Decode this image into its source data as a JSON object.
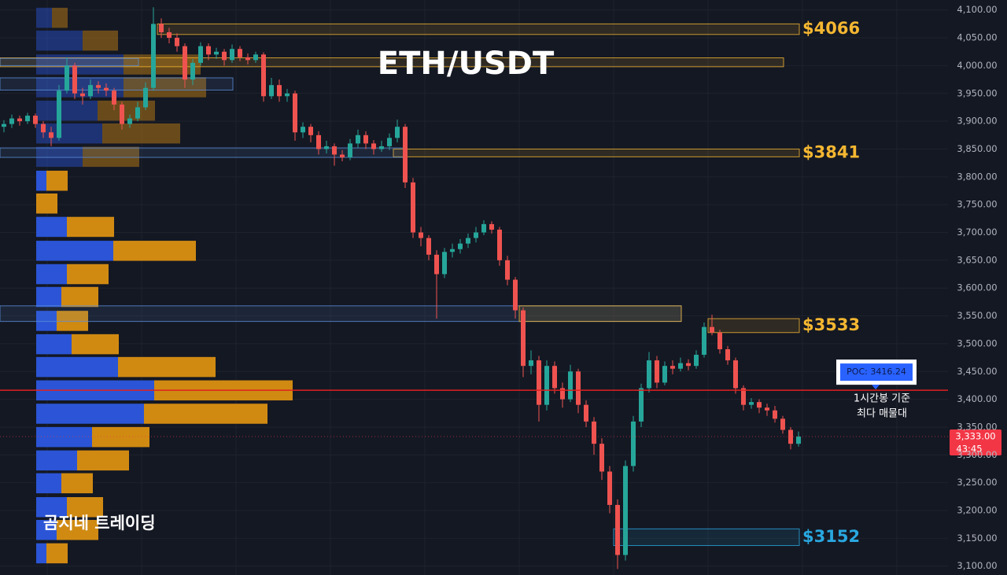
{
  "chart_data": {
    "type": "candlestick",
    "title": "ETH/USDT",
    "watermark": "곰지네 트레이딩",
    "ylim": [
      3084,
      4118
    ],
    "yticks": [
      {
        "value": 3100,
        "label": "3,100.00"
      },
      {
        "value": 3150,
        "label": "3,150.00"
      },
      {
        "value": 3200,
        "label": "3,200.00"
      },
      {
        "value": 3250,
        "label": "3,250.00"
      },
      {
        "value": 3300,
        "label": "3,300.00"
      },
      {
        "value": 3350,
        "label": "3,350.00"
      },
      {
        "value": 3400,
        "label": "3,400.00"
      },
      {
        "value": 3450,
        "label": "3,450.00"
      },
      {
        "value": 3500,
        "label": "3,500.00"
      },
      {
        "value": 3550,
        "label": "3,550.00"
      },
      {
        "value": 3600,
        "label": "3,600.00"
      },
      {
        "value": 3650,
        "label": "3,650.00"
      },
      {
        "value": 3700,
        "label": "3,700.00"
      },
      {
        "value": 3750,
        "label": "3,750.00"
      },
      {
        "value": 3800,
        "label": "3,800.00"
      },
      {
        "value": 3850,
        "label": "3,850.00"
      },
      {
        "value": 3900,
        "label": "3,900.00"
      },
      {
        "value": 3950,
        "label": "3,950.00"
      },
      {
        "value": 4000,
        "label": "4,000.00"
      },
      {
        "value": 4050,
        "label": "4,050.00"
      },
      {
        "value": 4100,
        "label": "4,100.00"
      }
    ],
    "grid": true,
    "up_color": "#26a69a",
    "down_color": "#ef5350",
    "ohlc": [
      [
        3890,
        3902,
        3880,
        3895
      ],
      [
        3895,
        3912,
        3888,
        3905
      ],
      [
        3905,
        3910,
        3892,
        3900
      ],
      [
        3900,
        3915,
        3895,
        3910
      ],
      [
        3910,
        3914,
        3888,
        3895
      ],
      [
        3895,
        3900,
        3870,
        3880
      ],
      [
        3880,
        3890,
        3855,
        3870
      ],
      [
        3870,
        3965,
        3865,
        3955
      ],
      [
        3955,
        4015,
        3950,
        4000
      ],
      [
        4000,
        4005,
        3940,
        3950
      ],
      [
        3950,
        3960,
        3930,
        3945
      ],
      [
        3945,
        3975,
        3940,
        3965
      ],
      [
        3965,
        3972,
        3950,
        3960
      ],
      [
        3960,
        3968,
        3945,
        3955
      ],
      [
        3955,
        3960,
        3920,
        3930
      ],
      [
        3930,
        3935,
        3885,
        3895
      ],
      [
        3895,
        3912,
        3888,
        3905
      ],
      [
        3905,
        3935,
        3900,
        3925
      ],
      [
        3925,
        3970,
        3920,
        3960
      ],
      [
        3960,
        4105,
        3955,
        4075
      ],
      [
        4075,
        4085,
        4050,
        4060
      ],
      [
        4060,
        4068,
        4040,
        4050
      ],
      [
        4050,
        4058,
        4025,
        4035
      ],
      [
        4035,
        4040,
        3960,
        3975
      ],
      [
        3975,
        4012,
        3965,
        4005
      ],
      [
        4005,
        4042,
        4000,
        4035
      ],
      [
        4035,
        4040,
        4010,
        4020
      ],
      [
        4020,
        4032,
        4012,
        4025
      ],
      [
        4025,
        4030,
        4000,
        4010
      ],
      [
        4010,
        4038,
        4005,
        4030
      ],
      [
        4030,
        4035,
        4008,
        4015
      ],
      [
        4015,
        4022,
        4002,
        4010
      ],
      [
        4010,
        4025,
        4005,
        4020
      ],
      [
        4020,
        4024,
        3935,
        3945
      ],
      [
        3945,
        3978,
        3940,
        3965
      ],
      [
        3965,
        3975,
        3935,
        3945
      ],
      [
        3945,
        3958,
        3935,
        3950
      ],
      [
        3950,
        3955,
        3865,
        3880
      ],
      [
        3880,
        3898,
        3870,
        3890
      ],
      [
        3890,
        3895,
        3862,
        3875
      ],
      [
        3875,
        3882,
        3840,
        3850
      ],
      [
        3850,
        3865,
        3842,
        3855
      ],
      [
        3855,
        3860,
        3820,
        3840
      ],
      [
        3840,
        3848,
        3828,
        3835
      ],
      [
        3835,
        3868,
        3830,
        3860
      ],
      [
        3860,
        3885,
        3852,
        3875
      ],
      [
        3875,
        3882,
        3850,
        3860
      ],
      [
        3860,
        3866,
        3840,
        3850
      ],
      [
        3850,
        3865,
        3845,
        3855
      ],
      [
        3855,
        3878,
        3848,
        3870
      ],
      [
        3870,
        3903,
        3862,
        3890
      ],
      [
        3890,
        3895,
        3780,
        3790
      ],
      [
        3790,
        3798,
        3690,
        3700
      ],
      [
        3700,
        3710,
        3675,
        3690
      ],
      [
        3690,
        3695,
        3650,
        3660
      ],
      [
        3660,
        3668,
        3545,
        3625
      ],
      [
        3625,
        3672,
        3618,
        3665
      ],
      [
        3665,
        3680,
        3655,
        3670
      ],
      [
        3670,
        3688,
        3662,
        3680
      ],
      [
        3680,
        3698,
        3672,
        3690
      ],
      [
        3690,
        3710,
        3682,
        3700
      ],
      [
        3700,
        3722,
        3695,
        3715
      ],
      [
        3715,
        3720,
        3698,
        3705
      ],
      [
        3705,
        3710,
        3640,
        3650
      ],
      [
        3650,
        3658,
        3605,
        3615
      ],
      [
        3615,
        3620,
        3545,
        3560
      ],
      [
        3560,
        3565,
        3440,
        3460
      ],
      [
        3460,
        3488,
        3445,
        3470
      ],
      [
        3470,
        3478,
        3360,
        3390
      ],
      [
        3390,
        3470,
        3380,
        3460
      ],
      [
        3460,
        3468,
        3410,
        3420
      ],
      [
        3420,
        3430,
        3385,
        3400
      ],
      [
        3400,
        3462,
        3395,
        3450
      ],
      [
        3450,
        3455,
        3375,
        3390
      ],
      [
        3390,
        3398,
        3350,
        3360
      ],
      [
        3360,
        3368,
        3300,
        3320
      ],
      [
        3320,
        3330,
        3255,
        3270
      ],
      [
        3270,
        3280,
        3195,
        3210
      ],
      [
        3210,
        3220,
        3095,
        3120
      ],
      [
        3120,
        3290,
        3110,
        3280
      ],
      [
        3280,
        3370,
        3270,
        3360
      ],
      [
        3360,
        3428,
        3350,
        3420
      ],
      [
        3420,
        3485,
        3412,
        3470
      ],
      [
        3470,
        3478,
        3420,
        3430
      ],
      [
        3430,
        3468,
        3425,
        3460
      ],
      [
        3460,
        3470,
        3445,
        3455
      ],
      [
        3455,
        3475,
        3450,
        3465
      ],
      [
        3465,
        3472,
        3452,
        3460
      ],
      [
        3460,
        3488,
        3455,
        3480
      ],
      [
        3480,
        3538,
        3475,
        3530
      ],
      [
        3530,
        3552,
        3515,
        3520
      ],
      [
        3520,
        3525,
        3482,
        3490
      ],
      [
        3490,
        3496,
        3462,
        3470
      ],
      [
        3470,
        3475,
        3410,
        3420
      ],
      [
        3420,
        3425,
        3380,
        3390
      ],
      [
        3390,
        3402,
        3383,
        3395
      ],
      [
        3395,
        3400,
        3375,
        3385
      ],
      [
        3385,
        3392,
        3370,
        3380
      ],
      [
        3380,
        3388,
        3358,
        3365
      ],
      [
        3365,
        3370,
        3338,
        3345
      ],
      [
        3345,
        3350,
        3310,
        3320
      ],
      [
        3320,
        3342,
        3315,
        3333
      ]
    ],
    "profile": {
      "buy_color": "#2b55d6",
      "sell_color": "#d08a12",
      "prices": [
        4086,
        4045,
        4002,
        3961,
        3919,
        3878,
        3836,
        3793,
        3752,
        3710,
        3667,
        3625,
        3584,
        3541,
        3499,
        3458,
        3416,
        3374,
        3332,
        3290,
        3249,
        3206,
        3165,
        3123
      ],
      "buy": [
        20,
        59,
        111,
        111,
        78,
        84,
        59,
        13,
        0,
        39,
        98,
        39,
        32,
        26,
        45,
        104,
        150,
        137,
        71,
        52,
        32,
        39,
        26,
        13
      ],
      "sell": [
        20,
        45,
        98,
        105,
        73,
        99,
        72,
        27,
        27,
        60,
        105,
        53,
        47,
        40,
        60,
        124,
        176,
        157,
        73,
        66,
        40,
        46,
        53,
        27
      ]
    },
    "zones": [
      {
        "label": "$4066",
        "top": 4075,
        "bottom": 4056,
        "start": 20,
        "end": 101,
        "color": "#f5b731"
      },
      {
        "top": 4014,
        "bottom": 3998,
        "start": 0,
        "end": 99,
        "color": "#f5b731"
      },
      {
        "label": "$3841",
        "top": 3850,
        "bottom": 3836,
        "start": 50,
        "end": 101,
        "color": "#f5b731"
      },
      {
        "label": "$3533",
        "top": 3545,
        "bottom": 3520,
        "start": 90,
        "end": 101,
        "color": "#f5b731"
      },
      {
        "label": "$3152",
        "top": 3167,
        "bottom": 3137,
        "start": 78,
        "end": 101,
        "color": "#29a8e0"
      },
      {
        "top": 3978,
        "bottom": 3956,
        "start": 0,
        "end": 29,
        "color": "#5b8fd9"
      },
      {
        "top": 4013,
        "bottom": 4000,
        "start": 0,
        "end": 17,
        "color": "#5b8fd9"
      },
      {
        "top": 3852,
        "bottom": 3835,
        "start": 0,
        "end": 51,
        "color": "#5b8fd9"
      },
      {
        "top": 3568,
        "bottom": 3540,
        "start": 0,
        "end": 86,
        "color": "#5b8fd9"
      },
      {
        "top": 3568,
        "bottom": 3540,
        "start": 66,
        "end": 86,
        "color": "#f5b731"
      }
    ],
    "poc": {
      "value": 3416.24,
      "label": "POC: 3416.24",
      "note": [
        "1시간봉 기준",
        "최다 매물대"
      ],
      "color": "#e02020"
    },
    "last_price": {
      "value": 3333,
      "label": "3,333.00",
      "countdown": "43:45",
      "color": "#f23645"
    }
  }
}
